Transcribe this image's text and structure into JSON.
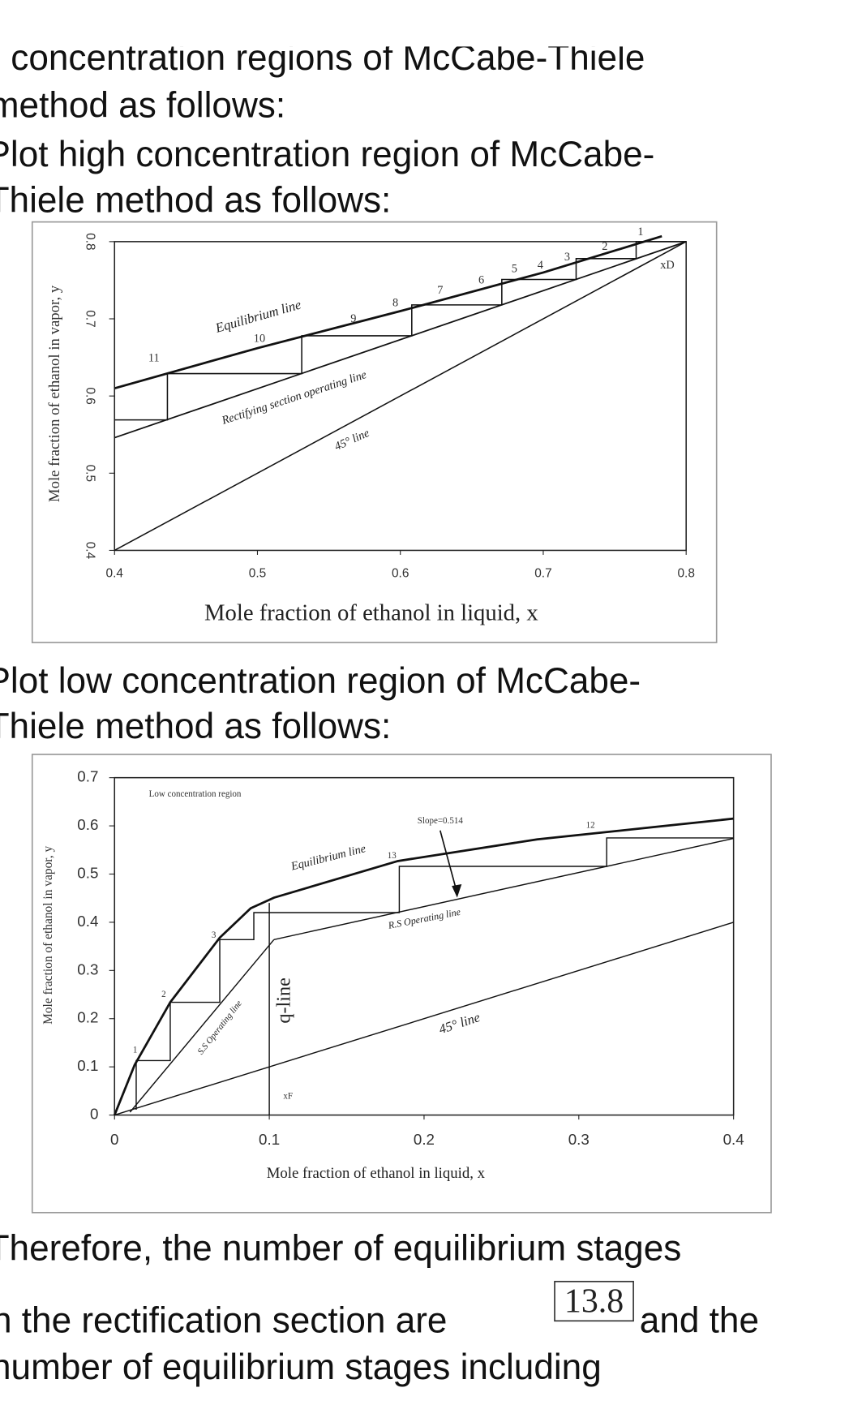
{
  "text": {
    "intro": [
      "concentration regions of McCabe-Thiele",
      "method as follows:"
    ],
    "high_heading": [
      "Plot high concentration region of McCabe-",
      "Thiele method as follows:"
    ],
    "low_heading": [
      "Plot low concentration region of McCabe-",
      "Thiele method as follows:"
    ],
    "conclusion": [
      "Therefore, the number of equilibrium stages",
      "in the rectification section are",
      "and the",
      "number of equilibrium stages including"
    ],
    "answer": "13.8"
  },
  "chart_data": [
    {
      "type": "line",
      "x_label": "Mole fraction of ethanol in liquid, x",
      "y_label": "Mole fraction of ethanol in vapor, y",
      "xlim": [
        0.4,
        0.8
      ],
      "ylim": [
        0.4,
        0.8
      ],
      "xticks": [
        0.4,
        0.5,
        0.6,
        0.7,
        0.8
      ],
      "yticks": [
        0.4,
        0.5,
        0.6,
        0.7,
        0.8
      ],
      "series": [
        {
          "name": "Equilibrium line",
          "color": "#111111",
          "x": [
            0.4,
            0.5,
            0.6,
            0.7,
            0.783
          ],
          "values": [
            0.61,
            0.662,
            0.71,
            0.76,
            0.807
          ]
        },
        {
          "name": "Rectifying section operating line",
          "color": "#111111",
          "x": [
            0.4,
            0.8
          ],
          "values": [
            0.546,
            0.8
          ]
        },
        {
          "name": "45° line",
          "color": "#111111",
          "x": [
            0.4,
            0.8
          ],
          "values": [
            0.4,
            0.8
          ]
        },
        {
          "color": "#111111",
          "x": [
            0.8,
            0.765,
            0.765,
            0.723,
            0.723,
            0.671,
            0.671,
            0.608,
            0.608,
            0.531,
            0.531,
            0.437,
            0.437,
            0.4
          ],
          "values": [
            0.8,
            0.8,
            0.778,
            0.778,
            0.751,
            0.751,
            0.718,
            0.718,
            0.678,
            0.678,
            0.629,
            0.629,
            0.569,
            0.569
          ]
        }
      ],
      "annotations": [
        "11",
        "10",
        "9",
        "8",
        "7",
        "6",
        "5",
        "4",
        "3",
        "2",
        "1",
        "xD"
      ]
    },
    {
      "type": "line",
      "x_label": "Mole fraction of ethanol in liquid, x",
      "y_label": "Mole fraction of ethanol in vapor, y",
      "xlim": [
        0,
        0.4
      ],
      "ylim": [
        0,
        0.7
      ],
      "xticks": [
        0,
        0.1,
        0.2,
        0.3,
        0.4
      ],
      "yticks": [
        0,
        0.1,
        0.2,
        0.3,
        0.4,
        0.5,
        0.6,
        0.7
      ],
      "series": [
        {
          "name": "Equilibrium line",
          "color": "#111111",
          "x": [
            0,
            0.013,
            0.036,
            0.068,
            0.088,
            0.103,
            0.183,
            0.273,
            0.4
          ],
          "values": [
            0,
            0.104,
            0.234,
            0.368,
            0.429,
            0.451,
            0.527,
            0.572,
            0.615
          ]
        },
        {
          "name": "R.S Operating line",
          "color": "#111111",
          "x": [
            0.103,
            0.4
          ],
          "values": [
            0.364,
            0.574
          ]
        },
        {
          "name": "S.S Operating line",
          "color": "#111111",
          "x": [
            0.01,
            0.103
          ],
          "values": [
            0.006,
            0.364
          ]
        },
        {
          "name": "45° line",
          "color": "#111111",
          "x": [
            0,
            0.4
          ],
          "values": [
            0,
            0.4
          ]
        },
        {
          "name": "q-line",
          "color": "#111111",
          "x": [
            0.1,
            0.1
          ],
          "values": [
            0,
            0.44
          ]
        },
        {
          "color": "#111111",
          "x": [
            0.4,
            0.318,
            0.318,
            0.184,
            0.184,
            0.09,
            0.09,
            0.068,
            0.068,
            0.036,
            0.036,
            0.014,
            0.014
          ],
          "values": [
            0.575,
            0.575,
            0.516,
            0.516,
            0.42,
            0.42,
            0.364,
            0.364,
            0.234,
            0.234,
            0.113,
            0.113,
            0.011
          ]
        }
      ],
      "annotations": [
        "Low concentration region",
        "Slope=0.514",
        "1",
        "2",
        "3",
        "12",
        "13",
        "xF"
      ]
    }
  ]
}
